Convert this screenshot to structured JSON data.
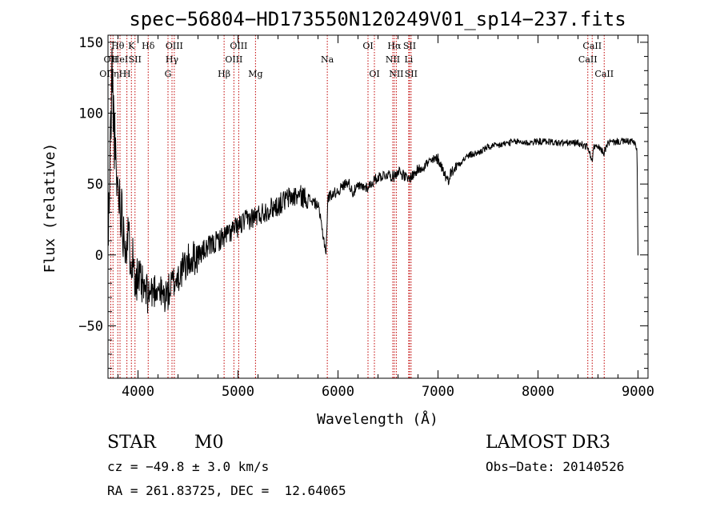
{
  "chart_data": {
    "type": "line",
    "title": "spec−56804−HD173550N120249V01_sp14−237.fits",
    "xlabel": "Wavelength (Å)",
    "ylabel": "Flux (relative)",
    "xlim": [
      3700,
      9100
    ],
    "ylim": [
      -87,
      155
    ],
    "xticks": [
      4000,
      5000,
      6000,
      7000,
      8000,
      9000
    ],
    "xtick_labels": [
      "4000",
      "5000",
      "6000",
      "7000",
      "8000",
      "9000"
    ],
    "yticks": [
      -50,
      0,
      50,
      100,
      150
    ],
    "ytick_labels": [
      "−50",
      "0",
      "50",
      "100",
      "150"
    ],
    "line_color": "#000000",
    "marker_color": "#c00000",
    "spectrum": {
      "x": [
        3700,
        3740,
        3780,
        3820,
        3860,
        3900,
        3940,
        3980,
        4020,
        4060,
        4100,
        4150,
        4200,
        4250,
        4300,
        4350,
        4400,
        4450,
        4500,
        4600,
        4700,
        4800,
        4900,
        5000,
        5100,
        5200,
        5300,
        5400,
        5500,
        5600,
        5700,
        5800,
        5880,
        5900,
        5920,
        6000,
        6100,
        6150,
        6200,
        6300,
        6400,
        6500,
        6560,
        6600,
        6700,
        6800,
        6900,
        7000,
        7050,
        7100,
        7120,
        7200,
        7300,
        7400,
        7500,
        7600,
        7700,
        7800,
        7900,
        8000,
        8100,
        8200,
        8300,
        8400,
        8500,
        8540,
        8560,
        8600,
        8660,
        8700,
        8800,
        8900,
        8950,
        8990,
        9000
      ],
      "y": [
        0,
        130,
        55,
        40,
        15,
        10,
        0,
        -15,
        -20,
        -25,
        -28,
        -25,
        -22,
        -30,
        -27,
        -20,
        -15,
        -10,
        -5,
        0,
        5,
        10,
        15,
        20,
        25,
        28,
        32,
        35,
        40,
        42,
        40,
        35,
        2,
        40,
        42,
        45,
        52,
        44,
        48,
        48,
        55,
        57,
        55,
        60,
        53,
        60,
        65,
        68,
        60,
        52,
        57,
        64,
        70,
        72,
        76,
        77,
        79,
        80,
        79,
        80,
        80,
        79,
        79,
        79,
        76,
        66,
        76,
        76,
        72,
        79,
        80,
        80,
        80,
        75,
        0
      ]
    },
    "lines": [
      {
        "x": 3727,
        "label": "OII",
        "row": 1
      },
      {
        "x": 3750,
        "label": "OIIηH",
        "row": 2
      },
      {
        "x": 3798,
        "label": "Hθ",
        "row": 0
      },
      {
        "x": 3820,
        "label": "HeI",
        "row": 1
      },
      {
        "x": 3889,
        "label": "H",
        "row": 2
      },
      {
        "x": 3934,
        "label": "K",
        "row": 0
      },
      {
        "x": 3970,
        "label": "SII",
        "row": 1
      },
      {
        "x": 4102,
        "label": "Hδ",
        "row": 0
      },
      {
        "x": 4300,
        "label": "G",
        "row": 2
      },
      {
        "x": 4340,
        "label": "Hγ",
        "row": 1
      },
      {
        "x": 4363,
        "label": "OIII",
        "row": 0
      },
      {
        "x": 4861,
        "label": "Hβ",
        "row": 2
      },
      {
        "x": 4959,
        "label": "OIII",
        "row": 1
      },
      {
        "x": 5007,
        "label": "OIII",
        "row": 0
      },
      {
        "x": 5175,
        "label": "Mg",
        "row": 2
      },
      {
        "x": 5893,
        "label": "Na",
        "row": 1
      },
      {
        "x": 6300,
        "label": "OI",
        "row": 0
      },
      {
        "x": 6364,
        "label": "OI",
        "row": 2
      },
      {
        "x": 6548,
        "label": "NII",
        "row": 1
      },
      {
        "x": 6563,
        "label": "Hα",
        "row": 0
      },
      {
        "x": 6583,
        "label": "NII",
        "row": 2
      },
      {
        "x": 6707,
        "label": "Li",
        "row": 1
      },
      {
        "x": 6716,
        "label": "SII",
        "row": 0
      },
      {
        "x": 6731,
        "label": "SII",
        "row": 2
      },
      {
        "x": 8498,
        "label": "CaII",
        "row": 1
      },
      {
        "x": 8542,
        "label": "CaII",
        "row": 0
      },
      {
        "x": 8662,
        "label": "CaII",
        "row": 2
      }
    ]
  },
  "info": {
    "class": "STAR",
    "subclass": "M0",
    "survey": "LAMOST DR3",
    "cz": "cz = −49.8 ± 3.0 km/s",
    "obs_date": "Obs−Date: 20140526",
    "coords": "RA = 261.83725, DEC =  12.64065"
  }
}
